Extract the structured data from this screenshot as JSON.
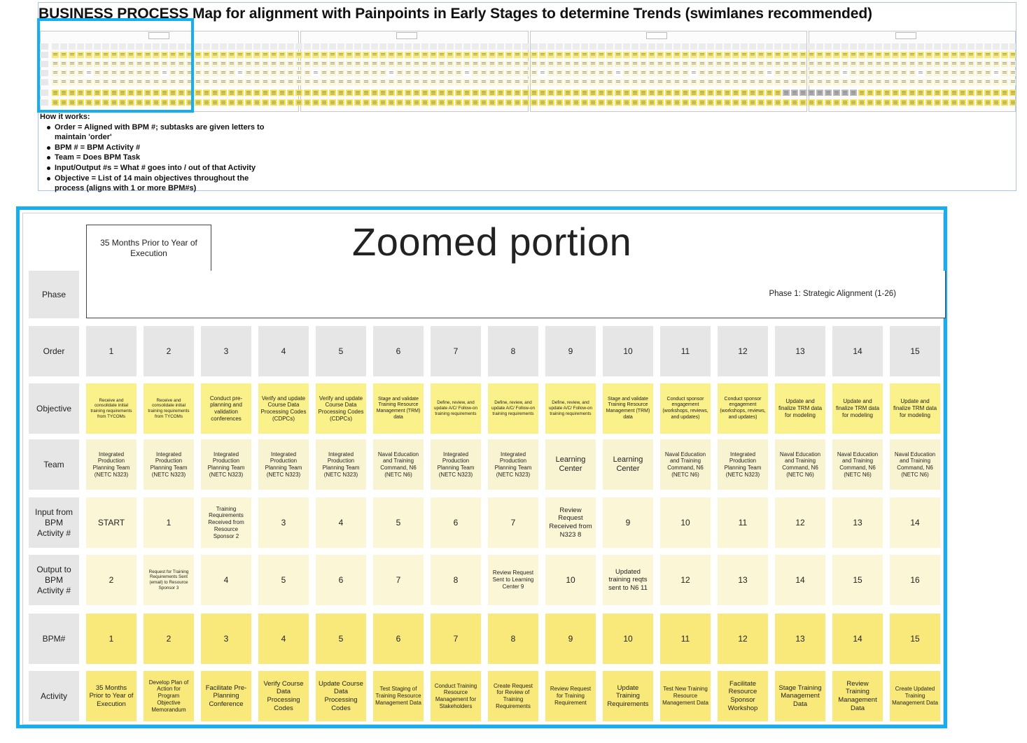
{
  "title": {
    "strong": "BUSINESS PROCESS",
    "rest": " Map for alignment with Painpoints in Early Stages to determine Trends (swimlanes recommended)"
  },
  "how_it_works": {
    "heading": "How it works:",
    "items": [
      "Order = Aligned with BPM #; subtasks are given letters to maintain 'order'",
      "BPM # = BPM Activity #",
      "Team = Does BPM Task",
      "Input/Output #s = What # goes into / out of that Activity",
      "Objective = List of 14 main objectives throughout the process (aligns with 1 or more BPM#s)"
    ]
  },
  "zoom": {
    "title": "Zoomed portion",
    "timeframe": "35 Months Prior to Year of Execution",
    "phase_label": "Phase 1: Strategic Alignment (1-26)",
    "row_headers": {
      "phase": "Phase",
      "order": "Order",
      "objective": "Objective",
      "team": "Team",
      "input": "Input from BPM Activity #",
      "output": "Output to BPM Activity #",
      "bpm": "BPM#",
      "activity": "Activity"
    },
    "order": [
      "1",
      "2",
      "3",
      "4",
      "5",
      "6",
      "7",
      "8",
      "9",
      "10",
      "11",
      "12",
      "13",
      "14",
      "15"
    ],
    "objective": [
      "Receive and consolidate initial training requirements from TYCOMs",
      "Receive and consolidate initial training requirements from TYCOMs",
      "Conduct pre-planning and validation conferences",
      "Verify and update Course Data Processing Codes (CDPCs)",
      "Verify and update Course Data Processing Codes (CDPCs)",
      "Stage and validate Training Resource Management (TRM) data",
      "Define, review, and update A/C/ Follow-on training requirements",
      "Define, review, and update A/C/ Follow-on training requirements",
      "Define, review, and update A/C/ Follow-on training requirements",
      "Stage and validate Training Resource Management (TRM) data",
      "Conduct sponsor engagement (workshops, reviews, and updates)",
      "Conduct sponsor engagement (workshops, reviews, and updates)",
      "Update and finalize TRM data for modeling",
      "Update and finalize TRM data for modeling",
      "Update and finalize TRM data for modeling"
    ],
    "team": [
      "Integrated Production Planning Team (NETC N323)",
      "Integrated Production Planning Team (NETC N323)",
      "Integrated Production Planning Team (NETC N323)",
      "Integrated Production Planning Team (NETC N323)",
      "Integrated Production Planning Team (NETC N323)",
      "Naval Education and Training Command, N6 (NETC N6)",
      "Integrated Production Planning Team (NETC N323)",
      "Integrated Production Planning Team (NETC N323)",
      "Learning Center",
      "Learning Center",
      "Naval Education and Training Command, N6 (NETC N6)",
      "Integrated Production Planning Team (NETC N323)",
      "Naval Education and Training Command, N6 (NETC N6)",
      "Naval Education and Training Command, N6 (NETC N6)",
      "Naval Education and Training Command, N6 (NETC N6)"
    ],
    "input": [
      "START",
      "1",
      "Training Requirements Received from Resource Sponsor 2",
      "3",
      "4",
      "5",
      "6",
      "7",
      "Review Request Received from N323  8",
      "9",
      "10",
      "11",
      "12",
      "13",
      "14"
    ],
    "output": [
      "2",
      "Request for Training Requirements Sent (email) to Resource Sponsor  3",
      "4",
      "5",
      "6",
      "7",
      "8",
      "Review Request Sent to Learning Center 9",
      "10",
      "Updated training reqts sent to N6   11",
      "12",
      "13",
      "14",
      "15",
      "16"
    ],
    "bpm": [
      "1",
      "2",
      "3",
      "4",
      "5",
      "6",
      "7",
      "8",
      "9",
      "10",
      "11",
      "12",
      "13",
      "14",
      "15"
    ],
    "activity": [
      "35 Months Prior to Year of Execution",
      "Develop Plan of Action for Program Objective Memorandum",
      "Facilitate Pre-Planning Conference",
      "Verify Course Data Processing Codes",
      "Update Course Data Processing Codes",
      "Test Staging of Training Resource Management Data",
      "Conduct Training Resource Management for Stakeholders",
      "Create Request for Review of Training Requirements",
      "Review Request for Training Requirement",
      "Update Training Requirements",
      "Test New Training Resource Management Data",
      "Facilitate Resource Sponsor Workshop",
      "Stage Training Management Data",
      "Review Training Management Data",
      "Create Updated Training Management Data"
    ]
  },
  "colors": {
    "accent_frame": "#15aef0",
    "sticky_yellow": "#fbf18a",
    "sticky_pale": "#fbf6d5",
    "header_gray": "#e6e6e6"
  }
}
